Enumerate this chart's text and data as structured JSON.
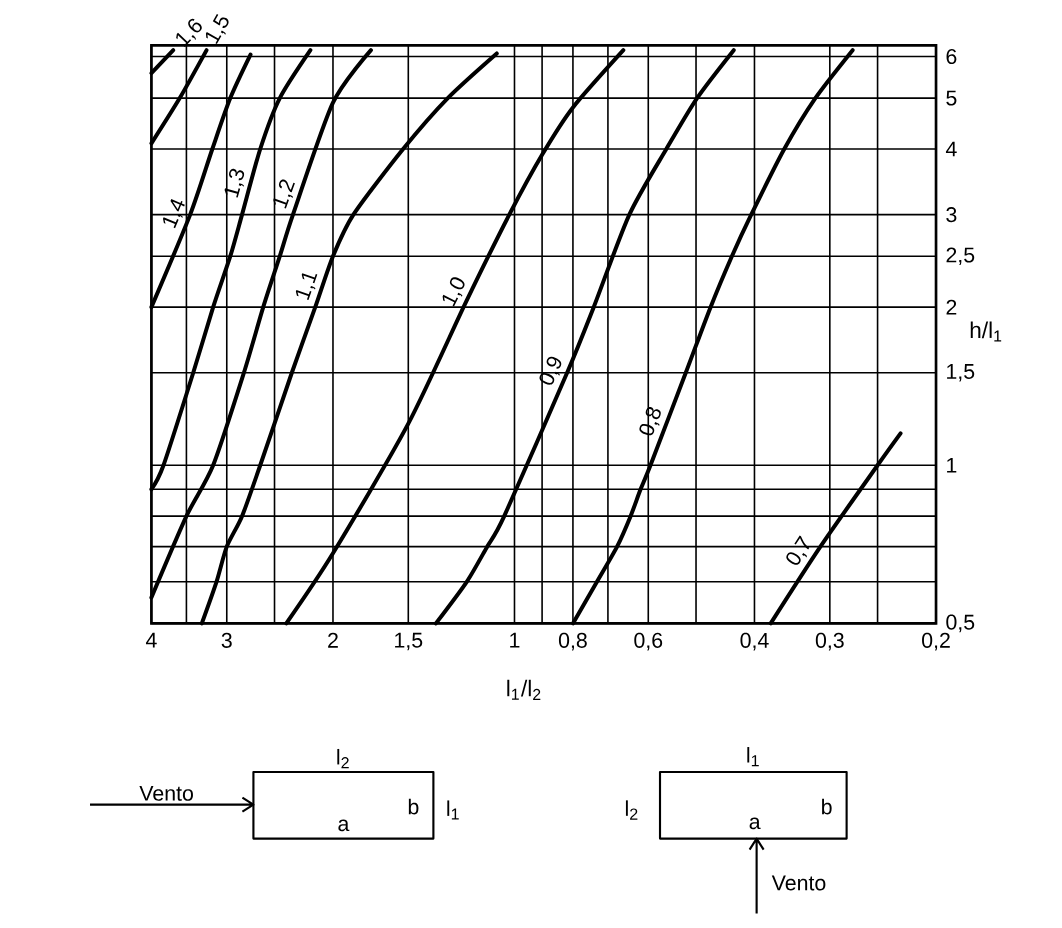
{
  "chart_data": {
    "type": "line",
    "xlabel": "l$_{1}$/l$_{2}$",
    "ylabel": "h/l$_{1}$",
    "log": "xy",
    "xlim": [
      4,
      0.2
    ],
    "ylim": [
      0.5,
      6.3
    ],
    "xticks": [
      4,
      {
        "value": 3.5,
        "label": null
      },
      3,
      {
        "value": 2.5,
        "label": null
      },
      2,
      {
        "value": 1.5,
        "label": "1,5"
      },
      1,
      {
        "value": 0.9,
        "label": null
      },
      {
        "value": 0.8,
        "label": "0,8"
      },
      {
        "value": 0.7,
        "label": null
      },
      {
        "value": 0.6,
        "label": "0,6"
      },
      {
        "value": 0.5,
        "label": null
      },
      {
        "value": 0.4,
        "label": "0,4"
      },
      {
        "value": 0.3,
        "label": "0,3"
      },
      {
        "value": 0.25,
        "label": null
      },
      {
        "value": 0.2,
        "label": "0,2"
      }
    ],
    "yticks": [
      {
        "value": 0.5,
        "label": "0,5"
      },
      {
        "value": 0.6,
        "label": null
      },
      {
        "value": 0.7,
        "label": null
      },
      {
        "value": 0.8,
        "label": null
      },
      {
        "value": 0.9,
        "label": null
      },
      1,
      {
        "value": 1.5,
        "label": "1,5"
      },
      2,
      {
        "value": 2.5,
        "label": "2,5"
      },
      3,
      4,
      5,
      6
    ],
    "grid": true,
    "marker": "none",
    "series": [
      {
        "name": "1,6",
        "color": "#000000",
        "x": [
          4,
          3.68
        ],
        "values": [
          5.58,
          6.17
        ]
      },
      {
        "name": "1,5",
        "color": "#000000",
        "x": [
          4,
          3.59,
          3.24
        ],
        "values": [
          4.1,
          5.0,
          6.17
        ]
      },
      {
        "name": "1,4",
        "color": "#000000",
        "x": [
          4,
          3.45,
          3.17,
          2.96,
          2.74
        ],
        "values": [
          2.0,
          3.0,
          4.0,
          5.0,
          6.05
        ]
      },
      {
        "name": "1,3",
        "color": "#000000",
        "x": [
          4,
          3.82,
          3.41,
          3.16,
          2.96,
          2.83,
          2.64,
          2.45,
          2.18
        ],
        "values": [
          0.9,
          1.0,
          1.5,
          2.0,
          2.5,
          3.0,
          4.0,
          5.0,
          6.17
        ]
      },
      {
        "name": "1,2",
        "color": "#000000",
        "x": [
          4,
          3.5,
          3.16,
          2.81,
          2.61,
          2.45,
          2.33,
          2.0,
          1.73
        ],
        "values": [
          0.56,
          0.8,
          1.0,
          1.5,
          2.0,
          2.5,
          3.0,
          4.9,
          6.17
        ]
      },
      {
        "name": "1,1",
        "color": "#000000",
        "x": [
          3.3,
          3.12,
          3.0,
          2.83,
          2.64,
          2.34,
          2.14,
          2.0,
          1.85,
          1.53,
          1.29,
          1.07
        ],
        "values": [
          0.5,
          0.6,
          0.7,
          0.8,
          1.0,
          1.5,
          2.0,
          2.5,
          3.0,
          4.0,
          5.0,
          6.08
        ]
      },
      {
        "name": "1,0",
        "color": "#000000",
        "x": [
          2.39,
          2.0,
          1.5,
          1.2,
          1.02,
          0.9,
          0.8,
          0.66
        ],
        "values": [
          0.5,
          0.68,
          1.2,
          2.06,
          3.0,
          3.9,
          4.8,
          6.17
        ]
      },
      {
        "name": "0,9",
        "color": "#000000",
        "x": [
          1.35,
          1.2,
          1.11,
          1.04,
          0.818,
          0.739,
          0.645,
          0.56,
          0.498,
          0.433
        ],
        "values": [
          0.5,
          0.6,
          0.7,
          0.8,
          1.5,
          2.0,
          3.0,
          4.0,
          5.0,
          6.17
        ]
      },
      {
        "name": "0,8",
        "color": "#000000",
        "x": [
          0.8,
          0.73,
          0.676,
          0.642,
          0.618,
          0.595,
          0.52,
          0.473,
          0.436,
          0.405,
          0.357,
          0.317,
          0.275
        ],
        "values": [
          0.5,
          0.6,
          0.7,
          0.8,
          0.9,
          1.0,
          1.5,
          2.0,
          2.5,
          3.0,
          4.0,
          5.0,
          6.17
        ]
      },
      {
        "name": "0,7",
        "color": "#000000",
        "x": [
          0.376,
          0.311,
          0.25,
          0.229
        ],
        "values": [
          0.5,
          0.7,
          1.0,
          1.15
        ]
      }
    ],
    "annotations": [
      "l$_{2}$",
      "Vento",
      "b",
      "l$_{1}$",
      "a",
      "l$_{1}$",
      "l$_{2}$",
      "b",
      "a",
      "Vento"
    ]
  }
}
